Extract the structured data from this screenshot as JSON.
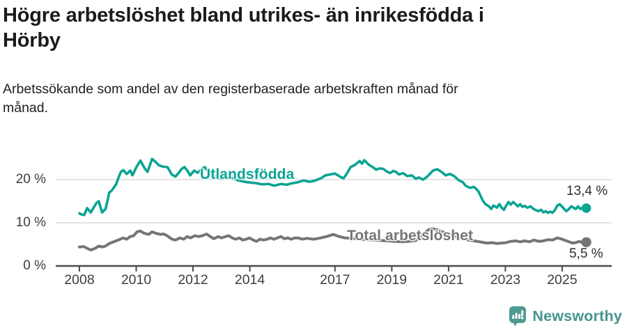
{
  "header": {
    "title": "Högre arbetslöshet bland utrikes- än inrikesfödda i\nHörby",
    "subtitle": "Arbetssökande som andel av den registerbaserade arbetskraften månad för\nmånad."
  },
  "chart_data": {
    "type": "line",
    "title": "Högre arbetslöshet bland utrikes- än inrikesfödda i Hörby",
    "subtitle": "Arbetssökande som andel av den registerbaserade arbetskraften månad för månad.",
    "xlim": [
      2007.6,
      2026.3
    ],
    "ylim": [
      0,
      26
    ],
    "grid": "horizontal",
    "legend_position": "inline-labels",
    "grid_color": "#dbdbdb",
    "axis_color": "#4a4a4a",
    "y_ticks": [
      0,
      10,
      20
    ],
    "y_tick_labels": [
      "0 %",
      "10 %",
      "20 %"
    ],
    "x_ticks": [
      2008,
      2010,
      2012,
      2014,
      2017,
      2019,
      2021,
      2023,
      2025
    ],
    "x_tick_labels": [
      "2008",
      "2010",
      "2012",
      "2014",
      "2017",
      "2019",
      "2021",
      "2023",
      "2025"
    ],
    "series": [
      {
        "name": "Utlandsfödda",
        "color": "#0ba493",
        "end_label": "13,4 %",
        "end_value": 13.4,
        "points": [
          [
            2008.0,
            12.2
          ],
          [
            2008.08,
            11.9
          ],
          [
            2008.17,
            11.8
          ],
          [
            2008.27,
            13.4
          ],
          [
            2008.4,
            12.4
          ],
          [
            2008.6,
            14.6
          ],
          [
            2008.68,
            15.0
          ],
          [
            2008.8,
            12.4
          ],
          [
            2008.92,
            13.2
          ],
          [
            2009.0,
            15.4
          ],
          [
            2009.05,
            17.0
          ],
          [
            2009.13,
            17.4
          ],
          [
            2009.29,
            18.9
          ],
          [
            2009.38,
            20.5
          ],
          [
            2009.46,
            21.8
          ],
          [
            2009.55,
            22.2
          ],
          [
            2009.66,
            21.3
          ],
          [
            2009.79,
            22.1
          ],
          [
            2009.87,
            21.0
          ],
          [
            2010.0,
            22.8
          ],
          [
            2010.15,
            24.4
          ],
          [
            2010.3,
            22.6
          ],
          [
            2010.4,
            21.8
          ],
          [
            2010.56,
            24.8
          ],
          [
            2010.7,
            24.0
          ],
          [
            2010.8,
            23.3
          ],
          [
            2010.95,
            23.0
          ],
          [
            2011.1,
            22.9
          ],
          [
            2011.25,
            21.2
          ],
          [
            2011.38,
            20.7
          ],
          [
            2011.5,
            21.6
          ],
          [
            2011.6,
            22.5
          ],
          [
            2011.7,
            22.9
          ],
          [
            2011.8,
            22.1
          ],
          [
            2011.9,
            21.0
          ],
          [
            2012.04,
            22.1
          ],
          [
            2012.16,
            21.6
          ],
          [
            2012.3,
            22.4
          ],
          [
            2012.41,
            22.9
          ],
          [
            2012.6,
            21.3
          ],
          [
            2012.8,
            20.6
          ],
          [
            2013.0,
            20.2
          ],
          [
            2013.3,
            20.6
          ],
          [
            2013.6,
            19.8
          ],
          [
            2013.9,
            19.4
          ],
          [
            2014.2,
            19.2
          ],
          [
            2014.45,
            18.9
          ],
          [
            2014.65,
            19.0
          ],
          [
            2014.86,
            18.6
          ],
          [
            2015.1,
            19.0
          ],
          [
            2015.3,
            18.8
          ],
          [
            2015.44,
            19.1
          ],
          [
            2015.7,
            19.4
          ],
          [
            2015.9,
            19.8
          ],
          [
            2016.1,
            19.5
          ],
          [
            2016.26,
            19.7
          ],
          [
            2016.5,
            20.3
          ],
          [
            2016.67,
            21.0
          ],
          [
            2017.0,
            21.4
          ],
          [
            2017.2,
            20.6
          ],
          [
            2017.3,
            20.3
          ],
          [
            2017.4,
            21.2
          ],
          [
            2017.55,
            22.9
          ],
          [
            2017.7,
            23.4
          ],
          [
            2017.87,
            24.3
          ],
          [
            2017.95,
            23.7
          ],
          [
            2018.03,
            24.5
          ],
          [
            2018.12,
            23.9
          ],
          [
            2018.2,
            23.4
          ],
          [
            2018.33,
            22.9
          ],
          [
            2018.45,
            22.3
          ],
          [
            2018.57,
            22.6
          ],
          [
            2018.7,
            22.5
          ],
          [
            2018.82,
            21.9
          ],
          [
            2018.94,
            21.5
          ],
          [
            2019.05,
            22.0
          ],
          [
            2019.15,
            21.8
          ],
          [
            2019.25,
            21.2
          ],
          [
            2019.4,
            21.5
          ],
          [
            2019.55,
            20.8
          ],
          [
            2019.7,
            21.0
          ],
          [
            2019.85,
            20.2
          ],
          [
            2019.95,
            20.5
          ],
          [
            2020.1,
            20.0
          ],
          [
            2020.25,
            20.7
          ],
          [
            2020.45,
            22.1
          ],
          [
            2020.6,
            22.4
          ],
          [
            2020.75,
            21.8
          ],
          [
            2020.9,
            21.0
          ],
          [
            2021.05,
            21.3
          ],
          [
            2021.2,
            20.8
          ],
          [
            2021.35,
            19.9
          ],
          [
            2021.5,
            19.4
          ],
          [
            2021.6,
            18.6
          ],
          [
            2021.75,
            18.1
          ],
          [
            2021.9,
            18.3
          ],
          [
            2022.05,
            17.3
          ],
          [
            2022.13,
            16.2
          ],
          [
            2022.21,
            15.1
          ],
          [
            2022.3,
            14.3
          ],
          [
            2022.42,
            13.8
          ],
          [
            2022.5,
            13.2
          ],
          [
            2022.58,
            14.0
          ],
          [
            2022.7,
            13.5
          ],
          [
            2022.79,
            14.3
          ],
          [
            2022.87,
            13.5
          ],
          [
            2022.95,
            13.0
          ],
          [
            2023.03,
            14.0
          ],
          [
            2023.11,
            14.8
          ],
          [
            2023.19,
            14.2
          ],
          [
            2023.28,
            14.8
          ],
          [
            2023.36,
            14.3
          ],
          [
            2023.44,
            13.8
          ],
          [
            2023.52,
            14.3
          ],
          [
            2023.6,
            13.7
          ],
          [
            2023.68,
            13.9
          ],
          [
            2023.77,
            13.5
          ],
          [
            2023.89,
            13.8
          ],
          [
            2023.97,
            13.3
          ],
          [
            2024.05,
            13.0
          ],
          [
            2024.17,
            12.7
          ],
          [
            2024.26,
            13.0
          ],
          [
            2024.34,
            12.4
          ],
          [
            2024.42,
            12.7
          ],
          [
            2024.5,
            12.3
          ],
          [
            2024.58,
            12.6
          ],
          [
            2024.66,
            12.3
          ],
          [
            2024.75,
            13.0
          ],
          [
            2024.83,
            14.0
          ],
          [
            2024.91,
            14.3
          ],
          [
            2024.99,
            13.8
          ],
          [
            2025.07,
            13.2
          ],
          [
            2025.15,
            12.7
          ],
          [
            2025.24,
            13.2
          ],
          [
            2025.32,
            13.8
          ],
          [
            2025.4,
            13.5
          ],
          [
            2025.48,
            13.2
          ],
          [
            2025.56,
            13.8
          ],
          [
            2025.64,
            13.2
          ],
          [
            2025.72,
            13.5
          ],
          [
            2025.85,
            13.4
          ]
        ]
      },
      {
        "name": "Total arbetslöshet",
        "color": "#757575",
        "end_label": "5,5 %",
        "end_value": 5.5,
        "points": [
          [
            2008.0,
            4.4
          ],
          [
            2008.15,
            4.5
          ],
          [
            2008.27,
            4.1
          ],
          [
            2008.4,
            3.7
          ],
          [
            2008.56,
            4.1
          ],
          [
            2008.68,
            4.6
          ],
          [
            2008.8,
            4.4
          ],
          [
            2008.92,
            4.6
          ],
          [
            2009.05,
            5.2
          ],
          [
            2009.21,
            5.6
          ],
          [
            2009.37,
            6.0
          ],
          [
            2009.54,
            6.5
          ],
          [
            2009.66,
            6.2
          ],
          [
            2009.79,
            6.8
          ],
          [
            2009.91,
            7.0
          ],
          [
            2010.03,
            7.9
          ],
          [
            2010.15,
            8.1
          ],
          [
            2010.27,
            7.6
          ],
          [
            2010.44,
            7.3
          ],
          [
            2010.56,
            7.9
          ],
          [
            2010.68,
            7.6
          ],
          [
            2010.85,
            7.3
          ],
          [
            2010.97,
            7.4
          ],
          [
            2011.09,
            7.0
          ],
          [
            2011.26,
            6.2
          ],
          [
            2011.38,
            6.0
          ],
          [
            2011.54,
            6.5
          ],
          [
            2011.67,
            6.2
          ],
          [
            2011.79,
            6.8
          ],
          [
            2011.91,
            6.5
          ],
          [
            2012.07,
            7.0
          ],
          [
            2012.2,
            6.8
          ],
          [
            2012.32,
            7.0
          ],
          [
            2012.48,
            7.4
          ],
          [
            2012.61,
            6.8
          ],
          [
            2012.73,
            6.3
          ],
          [
            2012.89,
            6.8
          ],
          [
            2013.01,
            6.5
          ],
          [
            2013.14,
            6.8
          ],
          [
            2013.26,
            7.0
          ],
          [
            2013.38,
            6.5
          ],
          [
            2013.5,
            6.2
          ],
          [
            2013.63,
            6.5
          ],
          [
            2013.75,
            6.0
          ],
          [
            2013.87,
            6.2
          ],
          [
            2013.99,
            6.5
          ],
          [
            2014.12,
            6.0
          ],
          [
            2014.24,
            5.7
          ],
          [
            2014.36,
            6.2
          ],
          [
            2014.48,
            6.0
          ],
          [
            2014.61,
            6.2
          ],
          [
            2014.73,
            6.5
          ],
          [
            2014.85,
            6.2
          ],
          [
            2014.97,
            6.5
          ],
          [
            2015.1,
            6.8
          ],
          [
            2015.22,
            6.3
          ],
          [
            2015.34,
            6.5
          ],
          [
            2015.46,
            6.2
          ],
          [
            2015.58,
            6.5
          ],
          [
            2015.7,
            6.5
          ],
          [
            2015.85,
            6.2
          ],
          [
            2016.0,
            6.4
          ],
          [
            2016.26,
            6.2
          ],
          [
            2016.5,
            6.5
          ],
          [
            2016.7,
            6.8
          ],
          [
            2016.94,
            7.3
          ],
          [
            2017.15,
            6.8
          ],
          [
            2017.35,
            6.5
          ],
          [
            2017.6,
            6.4
          ],
          [
            2017.85,
            6.2
          ],
          [
            2018.1,
            6.1
          ],
          [
            2018.35,
            6.0
          ],
          [
            2018.6,
            5.9
          ],
          [
            2018.85,
            5.8
          ],
          [
            2019.1,
            5.7
          ],
          [
            2019.35,
            5.6
          ],
          [
            2019.6,
            5.7
          ],
          [
            2019.85,
            5.9
          ],
          [
            2020.0,
            6.4
          ],
          [
            2020.15,
            7.6
          ],
          [
            2020.3,
            8.4
          ],
          [
            2020.45,
            8.6
          ],
          [
            2020.6,
            8.4
          ],
          [
            2020.75,
            8.0
          ],
          [
            2020.9,
            7.6
          ],
          [
            2021.1,
            7.1
          ],
          [
            2021.3,
            6.7
          ],
          [
            2021.5,
            6.3
          ],
          [
            2021.7,
            6.0
          ],
          [
            2021.9,
            5.8
          ],
          [
            2022.1,
            5.6
          ],
          [
            2022.25,
            5.4
          ],
          [
            2022.37,
            5.3
          ],
          [
            2022.54,
            5.4
          ],
          [
            2022.7,
            5.2
          ],
          [
            2022.87,
            5.3
          ],
          [
            2023.03,
            5.4
          ],
          [
            2023.19,
            5.7
          ],
          [
            2023.36,
            5.8
          ],
          [
            2023.52,
            5.6
          ],
          [
            2023.68,
            5.8
          ],
          [
            2023.85,
            5.6
          ],
          [
            2024.01,
            6.0
          ],
          [
            2024.17,
            5.7
          ],
          [
            2024.34,
            5.8
          ],
          [
            2024.5,
            6.1
          ],
          [
            2024.66,
            6.0
          ],
          [
            2024.83,
            6.5
          ],
          [
            2024.95,
            6.3
          ],
          [
            2025.07,
            6.0
          ],
          [
            2025.24,
            5.6
          ],
          [
            2025.36,
            5.3
          ],
          [
            2025.48,
            5.4
          ],
          [
            2025.6,
            5.7
          ],
          [
            2025.72,
            5.4
          ],
          [
            2025.85,
            5.5
          ]
        ]
      }
    ]
  },
  "branding": {
    "logo_text": "Newsworthy",
    "brand_color": "#46948e",
    "icon_color": "#4e9a93"
  }
}
